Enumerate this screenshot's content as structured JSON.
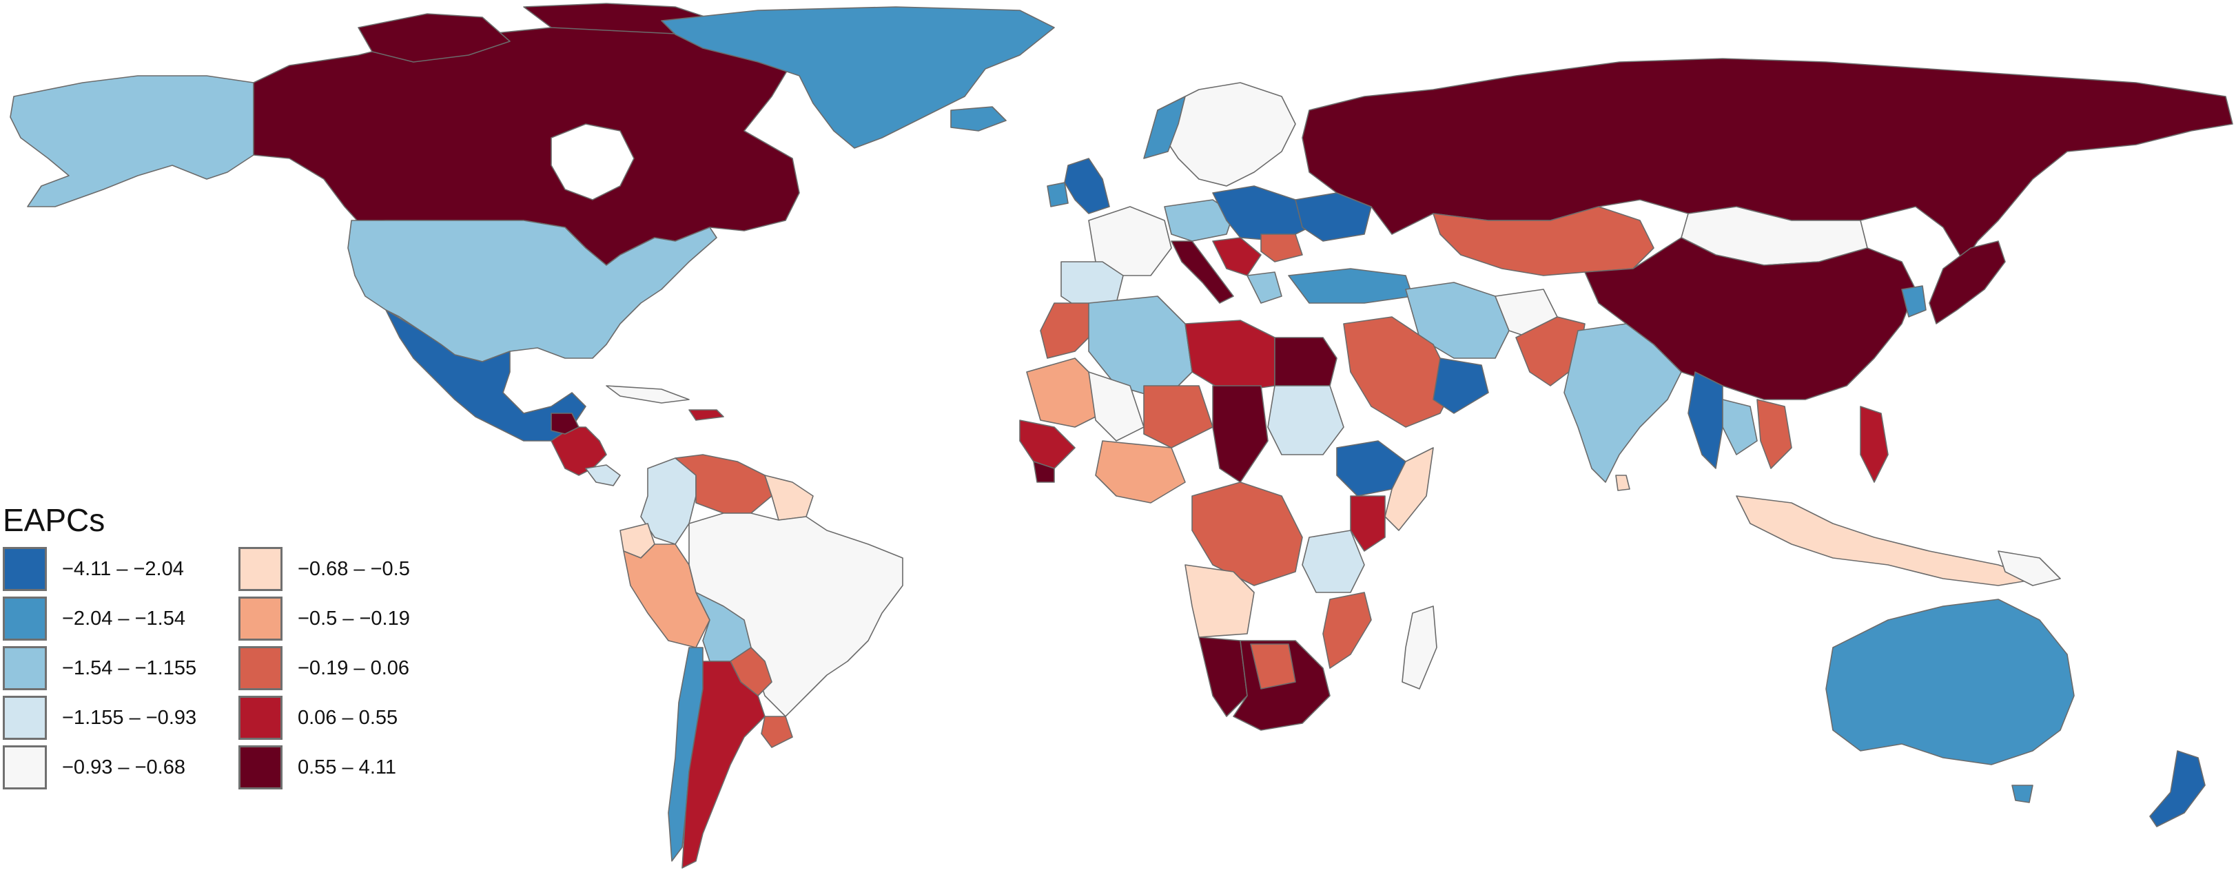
{
  "legend": {
    "title": "EAPCs",
    "bins": [
      {
        "label": "−4.11 – −2.04",
        "color": "#2166ac"
      },
      {
        "label": "−2.04 – −1.54",
        "color": "#4393c3"
      },
      {
        "label": "−1.54 – −1.155",
        "color": "#92c5de"
      },
      {
        "label": "−1.155 – −0.93",
        "color": "#d1e5f0"
      },
      {
        "label": "−0.93 – −0.68",
        "color": "#f7f7f7"
      },
      {
        "label": "−0.68 – −0.5",
        "color": "#fddbc7"
      },
      {
        "label": "−0.5 – −0.19",
        "color": "#f4a582"
      },
      {
        "label": "−0.19 – 0.06",
        "color": "#d6604d"
      },
      {
        "label": "0.06 – 0.55",
        "color": "#b2182b"
      },
      {
        "label": "0.55 – 4.11",
        "color": "#67001f"
      }
    ]
  },
  "map": {
    "ocean_color": "#ffffff",
    "border_color": "#6b6b6b"
  }
}
